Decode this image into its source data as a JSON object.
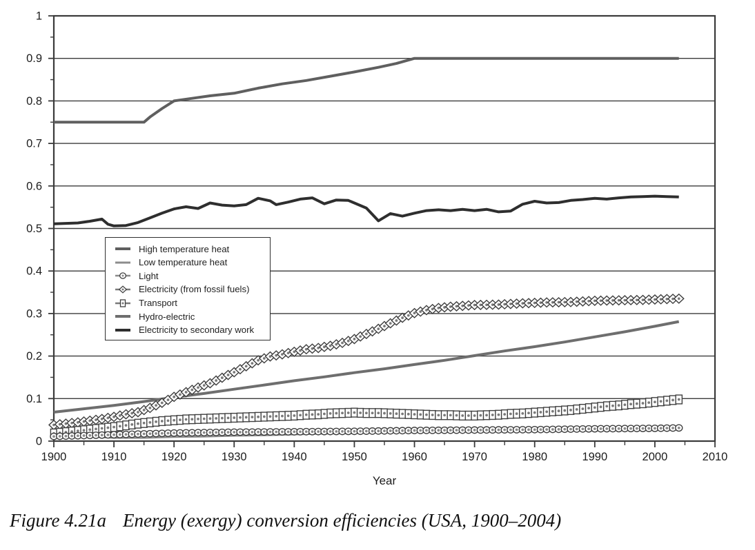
{
  "figure_caption": {
    "label": "Figure 4.21a",
    "title": "Energy (exergy) conversion efficiencies (USA, 1900–2004)"
  },
  "chart_data": {
    "type": "line",
    "title": "",
    "xlabel": "Year",
    "ylabel": "",
    "xlim": [
      1900,
      2010
    ],
    "ylim": [
      0,
      1
    ],
    "x_ticks": [
      1900,
      1910,
      1920,
      1930,
      1940,
      1950,
      1960,
      1970,
      1980,
      1990,
      2000,
      2010
    ],
    "x_minor_ticks": [
      1905,
      1915,
      1925,
      1935,
      1945,
      1955,
      1965,
      1975,
      1985,
      1995,
      2005
    ],
    "y_ticks": [
      0,
      0.1,
      0.2,
      0.3,
      0.4,
      0.5,
      0.6,
      0.7,
      0.8,
      0.9,
      1
    ],
    "y_tick_labels": [
      "0",
      "0.1",
      "0.2",
      "0.3",
      "0.4",
      "0.5",
      "0.6",
      "0.7",
      "0.8",
      "0.9",
      "1"
    ],
    "y_minor_ticks": [
      0.05,
      0.15,
      0.25,
      0.35,
      0.45,
      0.55,
      0.65,
      0.75,
      0.85,
      0.95
    ],
    "grid": "horizontal-major",
    "axis_color": "#3a3a3a",
    "legend": {
      "position": "inside-upper-left"
    },
    "series": [
      {
        "name": "High temperature heat",
        "color": "#5f5f5f",
        "line_width": 4,
        "marker": "none",
        "points": [
          [
            1900,
            0.75
          ],
          [
            1915,
            0.75
          ],
          [
            1916,
            0.762
          ],
          [
            1918,
            0.782
          ],
          [
            1920,
            0.8
          ],
          [
            1923,
            0.806
          ],
          [
            1926,
            0.812
          ],
          [
            1930,
            0.818
          ],
          [
            1934,
            0.83
          ],
          [
            1938,
            0.84
          ],
          [
            1942,
            0.848
          ],
          [
            1946,
            0.858
          ],
          [
            1950,
            0.868
          ],
          [
            1954,
            0.879
          ],
          [
            1957,
            0.888
          ],
          [
            1960,
            0.9
          ],
          [
            1970,
            0.9
          ],
          [
            1980,
            0.9
          ],
          [
            1990,
            0.9
          ],
          [
            2000,
            0.9
          ],
          [
            2004,
            0.9
          ]
        ]
      },
      {
        "name": "Low temperature heat",
        "color": "#8c8c8c",
        "line_width": 3,
        "marker": "none",
        "points": [
          [
            1900,
            0.021
          ],
          [
            1903,
            0.015
          ],
          [
            1906,
            0.011
          ],
          [
            1910,
            0.008
          ],
          [
            1915,
            0.008
          ],
          [
            1920,
            0.01
          ],
          [
            1925,
            0.011
          ],
          [
            1930,
            0.013
          ],
          [
            1935,
            0.014
          ],
          [
            1940,
            0.016
          ],
          [
            1945,
            0.018
          ],
          [
            1950,
            0.019
          ],
          [
            1955,
            0.021
          ],
          [
            1960,
            0.022
          ],
          [
            1965,
            0.023
          ],
          [
            1970,
            0.024
          ],
          [
            1975,
            0.0245
          ],
          [
            1980,
            0.025
          ],
          [
            1985,
            0.0255
          ],
          [
            1990,
            0.026
          ],
          [
            1995,
            0.0265
          ],
          [
            2000,
            0.027
          ],
          [
            2004,
            0.027
          ]
        ]
      },
      {
        "name": "Light",
        "color": "#8a8a8a",
        "line_width": 2.4,
        "marker": "circle",
        "marker_color": "#3f3f3f",
        "points": [
          [
            1900,
            0.011
          ],
          [
            1905,
            0.013
          ],
          [
            1910,
            0.015
          ],
          [
            1915,
            0.017
          ],
          [
            1920,
            0.019
          ],
          [
            1925,
            0.02
          ],
          [
            1930,
            0.021
          ],
          [
            1935,
            0.0215
          ],
          [
            1940,
            0.022
          ],
          [
            1945,
            0.0225
          ],
          [
            1950,
            0.023
          ],
          [
            1955,
            0.024
          ],
          [
            1960,
            0.025
          ],
          [
            1965,
            0.0255
          ],
          [
            1970,
            0.026
          ],
          [
            1975,
            0.0265
          ],
          [
            1980,
            0.027
          ],
          [
            1985,
            0.028
          ],
          [
            1990,
            0.029
          ],
          [
            1995,
            0.0295
          ],
          [
            2000,
            0.03
          ],
          [
            2004,
            0.031
          ]
        ]
      },
      {
        "name": "Electricity (from fossil fuels)",
        "color": "#7a7a7a",
        "line_width": 2.4,
        "marker": "diamond",
        "marker_color": "#3f3f3f",
        "points": [
          [
            1900,
            0.038
          ],
          [
            1902,
            0.041
          ],
          [
            1904,
            0.044
          ],
          [
            1906,
            0.048
          ],
          [
            1908,
            0.052
          ],
          [
            1910,
            0.057
          ],
          [
            1912,
            0.063
          ],
          [
            1914,
            0.068
          ],
          [
            1916,
            0.078
          ],
          [
            1918,
            0.09
          ],
          [
            1920,
            0.104
          ],
          [
            1922,
            0.115
          ],
          [
            1924,
            0.126
          ],
          [
            1926,
            0.136
          ],
          [
            1928,
            0.149
          ],
          [
            1930,
            0.162
          ],
          [
            1932,
            0.176
          ],
          [
            1934,
            0.19
          ],
          [
            1936,
            0.199
          ],
          [
            1938,
            0.204
          ],
          [
            1940,
            0.21
          ],
          [
            1942,
            0.216
          ],
          [
            1944,
            0.219
          ],
          [
            1946,
            0.224
          ],
          [
            1948,
            0.231
          ],
          [
            1950,
            0.24
          ],
          [
            1952,
            0.252
          ],
          [
            1954,
            0.264
          ],
          [
            1956,
            0.277
          ],
          [
            1958,
            0.29
          ],
          [
            1960,
            0.301
          ],
          [
            1962,
            0.308
          ],
          [
            1964,
            0.313
          ],
          [
            1966,
            0.316
          ],
          [
            1968,
            0.318
          ],
          [
            1970,
            0.32
          ],
          [
            1974,
            0.321
          ],
          [
            1978,
            0.324
          ],
          [
            1982,
            0.326
          ],
          [
            1986,
            0.327
          ],
          [
            1990,
            0.33
          ],
          [
            1994,
            0.331
          ],
          [
            1998,
            0.332
          ],
          [
            2002,
            0.334
          ],
          [
            2004,
            0.335
          ]
        ]
      },
      {
        "name": "Transport",
        "color": "#7a7a7a",
        "line_width": 2.4,
        "marker": "square",
        "marker_color": "#3f3f3f",
        "points": [
          [
            1900,
            0.018
          ],
          [
            1902,
            0.021
          ],
          [
            1904,
            0.024
          ],
          [
            1906,
            0.027
          ],
          [
            1908,
            0.03
          ],
          [
            1910,
            0.033
          ],
          [
            1912,
            0.037
          ],
          [
            1914,
            0.041
          ],
          [
            1916,
            0.044
          ],
          [
            1918,
            0.047
          ],
          [
            1920,
            0.049
          ],
          [
            1922,
            0.051
          ],
          [
            1924,
            0.052
          ],
          [
            1926,
            0.053
          ],
          [
            1928,
            0.054
          ],
          [
            1930,
            0.055
          ],
          [
            1932,
            0.056
          ],
          [
            1934,
            0.057
          ],
          [
            1936,
            0.058
          ],
          [
            1938,
            0.059
          ],
          [
            1940,
            0.06
          ],
          [
            1942,
            0.062
          ],
          [
            1944,
            0.063
          ],
          [
            1946,
            0.065
          ],
          [
            1948,
            0.066
          ],
          [
            1950,
            0.067
          ],
          [
            1952,
            0.066
          ],
          [
            1954,
            0.066
          ],
          [
            1956,
            0.065
          ],
          [
            1958,
            0.064
          ],
          [
            1960,
            0.063
          ],
          [
            1962,
            0.062
          ],
          [
            1964,
            0.061
          ],
          [
            1966,
            0.061
          ],
          [
            1968,
            0.06
          ],
          [
            1970,
            0.06
          ],
          [
            1972,
            0.061
          ],
          [
            1974,
            0.062
          ],
          [
            1976,
            0.064
          ],
          [
            1978,
            0.065
          ],
          [
            1980,
            0.067
          ],
          [
            1982,
            0.069
          ],
          [
            1984,
            0.071
          ],
          [
            1986,
            0.073
          ],
          [
            1988,
            0.076
          ],
          [
            1990,
            0.079
          ],
          [
            1992,
            0.082
          ],
          [
            1994,
            0.084
          ],
          [
            1996,
            0.087
          ],
          [
            1998,
            0.089
          ],
          [
            2000,
            0.092
          ],
          [
            2002,
            0.095
          ],
          [
            2004,
            0.098
          ]
        ]
      },
      {
        "name": "Hydro-electric",
        "color": "#6e6e6e",
        "line_width": 4,
        "marker": "none",
        "points": [
          [
            1900,
            0.068
          ],
          [
            1905,
            0.076
          ],
          [
            1910,
            0.084
          ],
          [
            1915,
            0.093
          ],
          [
            1920,
            0.103
          ],
          [
            1925,
            0.112
          ],
          [
            1930,
            0.122
          ],
          [
            1935,
            0.132
          ],
          [
            1940,
            0.142
          ],
          [
            1945,
            0.151
          ],
          [
            1950,
            0.161
          ],
          [
            1955,
            0.17
          ],
          [
            1960,
            0.18
          ],
          [
            1965,
            0.19
          ],
          [
            1970,
            0.201
          ],
          [
            1975,
            0.212
          ],
          [
            1980,
            0.222
          ],
          [
            1985,
            0.233
          ],
          [
            1990,
            0.245
          ],
          [
            1995,
            0.257
          ],
          [
            2000,
            0.27
          ],
          [
            2004,
            0.281
          ]
        ]
      },
      {
        "name": "Electricity to secondary work",
        "color": "#2e2e2e",
        "line_width": 4,
        "marker": "none",
        "points": [
          [
            1900,
            0.511
          ],
          [
            1902,
            0.512
          ],
          [
            1904,
            0.513
          ],
          [
            1906,
            0.517
          ],
          [
            1908,
            0.522
          ],
          [
            1909,
            0.51
          ],
          [
            1910,
            0.506
          ],
          [
            1912,
            0.507
          ],
          [
            1914,
            0.514
          ],
          [
            1916,
            0.525
          ],
          [
            1918,
            0.536
          ],
          [
            1920,
            0.546
          ],
          [
            1922,
            0.551
          ],
          [
            1924,
            0.547
          ],
          [
            1926,
            0.56
          ],
          [
            1928,
            0.555
          ],
          [
            1930,
            0.553
          ],
          [
            1932,
            0.556
          ],
          [
            1934,
            0.571
          ],
          [
            1936,
            0.565
          ],
          [
            1937,
            0.556
          ],
          [
            1939,
            0.562
          ],
          [
            1941,
            0.569
          ],
          [
            1943,
            0.572
          ],
          [
            1945,
            0.558
          ],
          [
            1947,
            0.567
          ],
          [
            1949,
            0.566
          ],
          [
            1950,
            0.56
          ],
          [
            1952,
            0.548
          ],
          [
            1954,
            0.518
          ],
          [
            1956,
            0.535
          ],
          [
            1958,
            0.529
          ],
          [
            1960,
            0.536
          ],
          [
            1962,
            0.542
          ],
          [
            1964,
            0.544
          ],
          [
            1966,
            0.542
          ],
          [
            1968,
            0.545
          ],
          [
            1970,
            0.542
          ],
          [
            1972,
            0.545
          ],
          [
            1974,
            0.539
          ],
          [
            1976,
            0.541
          ],
          [
            1978,
            0.557
          ],
          [
            1980,
            0.564
          ],
          [
            1982,
            0.56
          ],
          [
            1984,
            0.561
          ],
          [
            1986,
            0.566
          ],
          [
            1988,
            0.568
          ],
          [
            1990,
            0.571
          ],
          [
            1992,
            0.569
          ],
          [
            1994,
            0.572
          ],
          [
            1996,
            0.574
          ],
          [
            1998,
            0.575
          ],
          [
            2000,
            0.576
          ],
          [
            2002,
            0.575
          ],
          [
            2004,
            0.574
          ]
        ]
      }
    ]
  }
}
